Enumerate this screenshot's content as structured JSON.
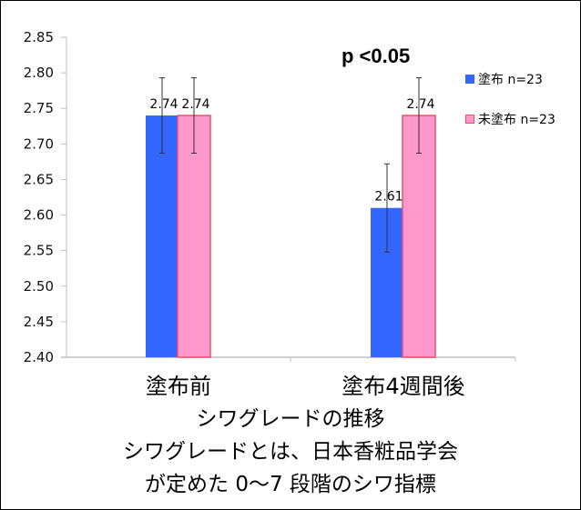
{
  "chart_data": {
    "type": "bar",
    "title": "シワグレードの推移",
    "categories": [
      "塗布前",
      "塗布4週間後"
    ],
    "series": [
      {
        "name": "塗布 n=23",
        "color": "#3366FF",
        "values": [
          2.74,
          2.61
        ],
        "error": [
          0.053,
          0.062
        ]
      },
      {
        "name": "未塗布 n=23",
        "color": "#FF99CC",
        "border": "#E8506E",
        "values": [
          2.74,
          2.74
        ],
        "error": [
          0.053,
          0.053
        ]
      }
    ],
    "data_labels": [
      "2.74",
      "2.61",
      "2.74",
      "2.74"
    ],
    "xlabel": "",
    "ylabel": "",
    "ylim": [
      2.4,
      2.85
    ],
    "yticks": [
      "2.85",
      "2.80",
      "2.75",
      "2.70",
      "2.65",
      "2.60",
      "2.55",
      "2.50",
      "2.45",
      "2.40"
    ],
    "grid": false,
    "legend_position": "right",
    "annotations": [
      "p <0.05"
    ]
  },
  "annotation": {
    "pvalue": "p <0.05"
  },
  "legend": [
    {
      "label": "塗布 n=23",
      "color": "#3366FF"
    },
    {
      "label": "未塗布 n=23",
      "color": "#FF99CC",
      "border": "#E8506E"
    }
  ],
  "categories": [
    "塗布前",
    "塗布4週間後"
  ],
  "captions": {
    "line1": "シワグレードの推移",
    "line2": "シワグレードとは、日本香粧品学会",
    "line3": "が定めた 0～7 段階のシワ指標"
  }
}
